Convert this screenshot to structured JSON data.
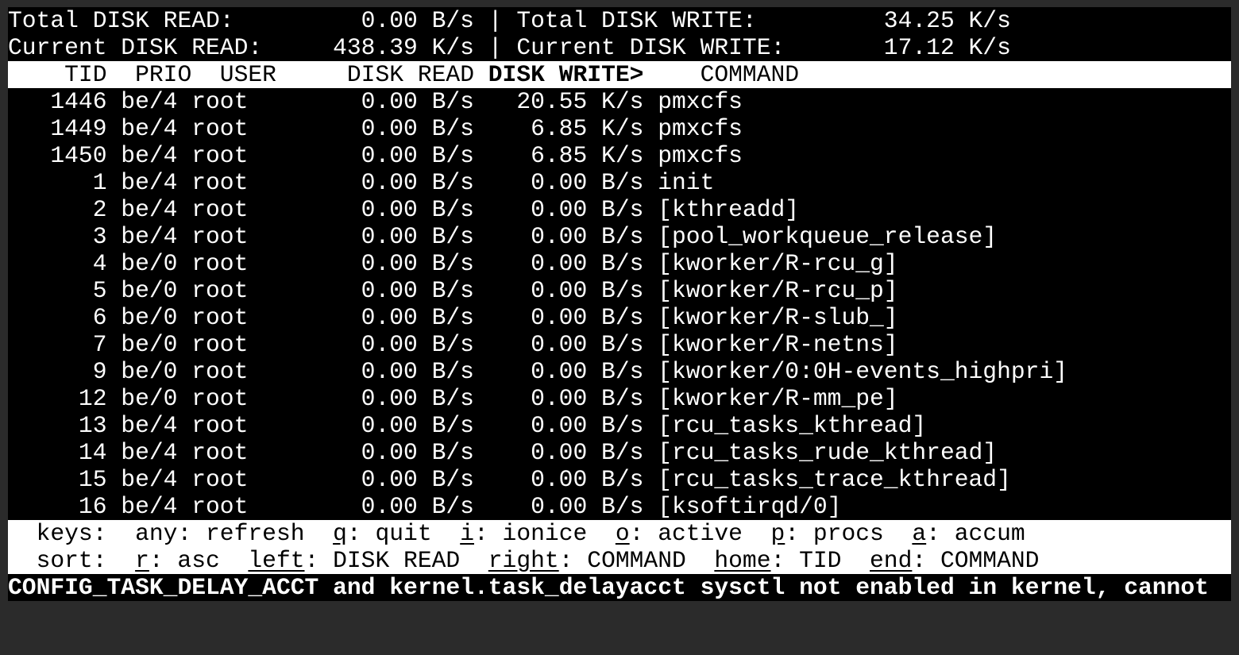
{
  "summary": {
    "total_read_label": "Total DISK READ:",
    "total_read": "0.00 B/s",
    "total_write_label": "Total DISK WRITE:",
    "total_write": "34.25 K/s",
    "current_read_label": "Current DISK READ:",
    "current_read": "438.39 K/s",
    "current_write_label": "Current DISK WRITE:",
    "current_write": "17.12 K/s",
    "separator": "|"
  },
  "columns": {
    "tid": "TID",
    "prio": "PRIO",
    "user": "USER",
    "disk_read": "DISK READ",
    "disk_write": "DISK WRITE>",
    "command": "COMMAND"
  },
  "rows": [
    {
      "tid": "1446",
      "prio": "be/4",
      "user": "root",
      "read": "0.00 B/s",
      "write": "20.55 K/s",
      "command": "pmxcfs"
    },
    {
      "tid": "1449",
      "prio": "be/4",
      "user": "root",
      "read": "0.00 B/s",
      "write": "6.85 K/s",
      "command": "pmxcfs"
    },
    {
      "tid": "1450",
      "prio": "be/4",
      "user": "root",
      "read": "0.00 B/s",
      "write": "6.85 K/s",
      "command": "pmxcfs"
    },
    {
      "tid": "1",
      "prio": "be/4",
      "user": "root",
      "read": "0.00 B/s",
      "write": "0.00 B/s",
      "command": "init"
    },
    {
      "tid": "2",
      "prio": "be/4",
      "user": "root",
      "read": "0.00 B/s",
      "write": "0.00 B/s",
      "command": "[kthreadd]"
    },
    {
      "tid": "3",
      "prio": "be/4",
      "user": "root",
      "read": "0.00 B/s",
      "write": "0.00 B/s",
      "command": "[pool_workqueue_release]"
    },
    {
      "tid": "4",
      "prio": "be/0",
      "user": "root",
      "read": "0.00 B/s",
      "write": "0.00 B/s",
      "command": "[kworker/R-rcu_g]"
    },
    {
      "tid": "5",
      "prio": "be/0",
      "user": "root",
      "read": "0.00 B/s",
      "write": "0.00 B/s",
      "command": "[kworker/R-rcu_p]"
    },
    {
      "tid": "6",
      "prio": "be/0",
      "user": "root",
      "read": "0.00 B/s",
      "write": "0.00 B/s",
      "command": "[kworker/R-slub_]"
    },
    {
      "tid": "7",
      "prio": "be/0",
      "user": "root",
      "read": "0.00 B/s",
      "write": "0.00 B/s",
      "command": "[kworker/R-netns]"
    },
    {
      "tid": "9",
      "prio": "be/0",
      "user": "root",
      "read": "0.00 B/s",
      "write": "0.00 B/s",
      "command": "[kworker/0:0H-events_highpri]"
    },
    {
      "tid": "12",
      "prio": "be/0",
      "user": "root",
      "read": "0.00 B/s",
      "write": "0.00 B/s",
      "command": "[kworker/R-mm_pe]"
    },
    {
      "tid": "13",
      "prio": "be/4",
      "user": "root",
      "read": "0.00 B/s",
      "write": "0.00 B/s",
      "command": "[rcu_tasks_kthread]"
    },
    {
      "tid": "14",
      "prio": "be/4",
      "user": "root",
      "read": "0.00 B/s",
      "write": "0.00 B/s",
      "command": "[rcu_tasks_rude_kthread]"
    },
    {
      "tid": "15",
      "prio": "be/4",
      "user": "root",
      "read": "0.00 B/s",
      "write": "0.00 B/s",
      "command": "[rcu_tasks_trace_kthread]"
    },
    {
      "tid": "16",
      "prio": "be/4",
      "user": "root",
      "read": "0.00 B/s",
      "write": "0.00 B/s",
      "command": "[ksoftirqd/0]"
    }
  ],
  "keys": {
    "label": "keys:",
    "items": [
      {
        "key": "any",
        "text": ": refresh",
        "underline": false
      },
      {
        "key": "q",
        "text": ": quit",
        "underline": true
      },
      {
        "key": "i",
        "text": ": ionice",
        "underline": true
      },
      {
        "key": "o",
        "text": ": active",
        "underline": true
      },
      {
        "key": "p",
        "text": ": procs",
        "underline": true
      },
      {
        "key": "a",
        "text": ": accum",
        "underline": true
      }
    ]
  },
  "sort": {
    "label": "sort:",
    "items": [
      {
        "key": "r",
        "text": ": asc",
        "underline": true
      },
      {
        "key": "left",
        "text": ": DISK READ",
        "underline": true
      },
      {
        "key": "right",
        "text": ": COMMAND",
        "underline": true
      },
      {
        "key": "home",
        "text": ": TID",
        "underline": true
      },
      {
        "key": "end",
        "text": ": COMMAND",
        "underline": true
      }
    ]
  },
  "message": "CONFIG_TASK_DELAY_ACCT and kernel.task_delayacct sysctl not enabled in kernel, cannot",
  "colors": {
    "background": "#000000",
    "foreground": "#ffffff",
    "frame": "#2b2b2b"
  }
}
